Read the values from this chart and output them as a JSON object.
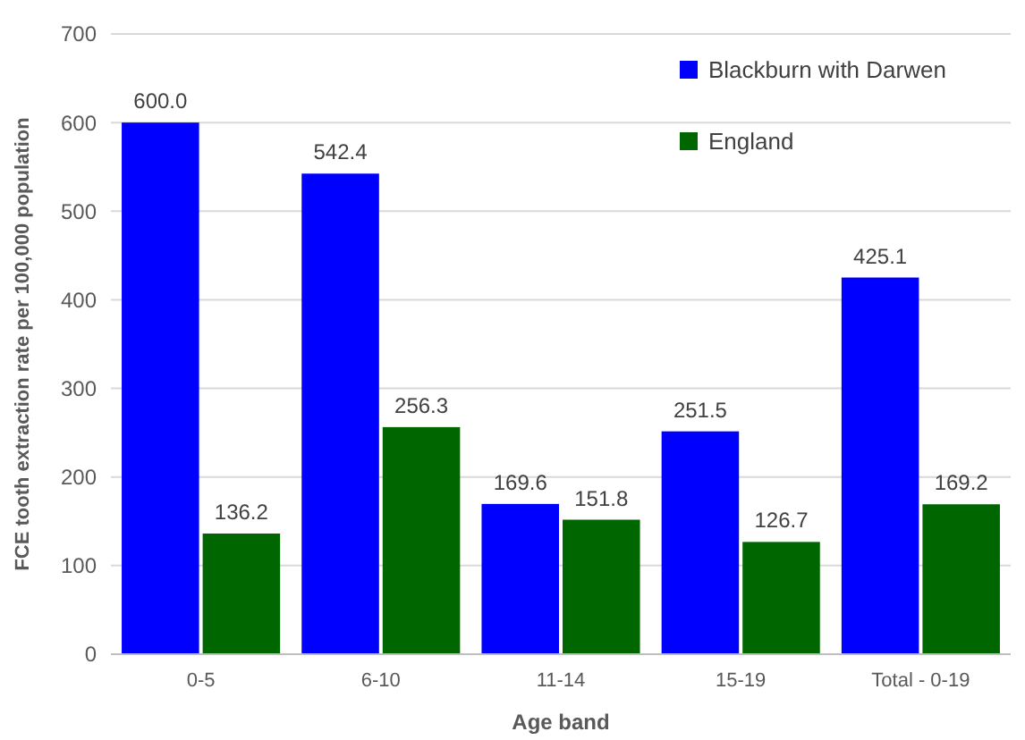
{
  "chart_data": {
    "type": "bar",
    "xlabel": "Age band",
    "ylabel": "FCE tooth extraction rate per 100,000 population",
    "categories": [
      "0-5",
      "6-10",
      "11-14",
      "15-19",
      "Total - 0-19"
    ],
    "series": [
      {
        "name": "Blackburn with Darwen",
        "color": "#0000ff",
        "values": [
          600.0,
          542.4,
          169.6,
          251.5,
          425.1
        ],
        "value_labels": [
          "600.0",
          "542.4",
          "169.6",
          "251.5",
          "425.1"
        ]
      },
      {
        "name": "England",
        "color": "#006600",
        "values": [
          136.2,
          256.3,
          151.8,
          126.7,
          169.2
        ],
        "value_labels": [
          "136.2",
          "256.3",
          "151.8",
          "126.7",
          "169.2"
        ]
      }
    ],
    "ylim": [
      0,
      700
    ],
    "yticks": [
      0,
      100,
      200,
      300,
      400,
      500,
      600,
      700
    ],
    "grid": "y",
    "legend": "top right"
  }
}
